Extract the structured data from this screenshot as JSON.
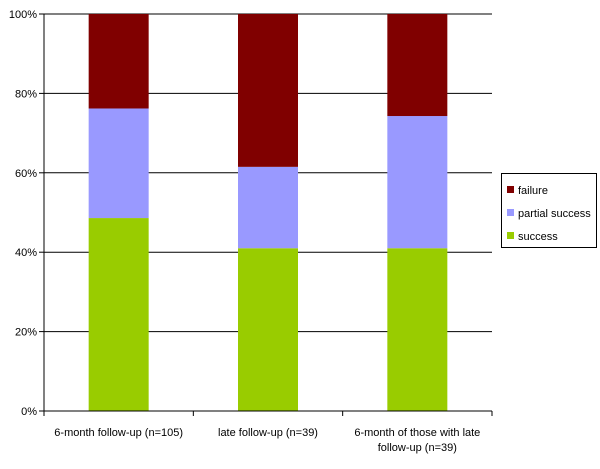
{
  "chart_data": {
    "type": "bar",
    "stacked": true,
    "percent": true,
    "categories": [
      [
        "6-month follow-up (n=105)"
      ],
      [
        "late follow-up (n=39)"
      ],
      [
        "6-month of those with late",
        "follow-up (n=39)"
      ]
    ],
    "series": [
      {
        "name": "success",
        "color": "#99cc00",
        "values": [
          48.6,
          41.0,
          41.0
        ]
      },
      {
        "name": "partial success",
        "color": "#9999ff",
        "values": [
          27.6,
          20.5,
          33.3
        ]
      },
      {
        "name": "failure",
        "color": "#800000",
        "values": [
          23.8,
          38.5,
          25.7
        ]
      }
    ],
    "ylim": [
      0,
      100
    ],
    "yticks": [
      "0%",
      "20%",
      "40%",
      "60%",
      "80%",
      "100%"
    ],
    "grid": true,
    "legend_position": "right",
    "legend_order": [
      "failure",
      "partial success",
      "success"
    ],
    "title": "",
    "xlabel": "",
    "ylabel": ""
  }
}
